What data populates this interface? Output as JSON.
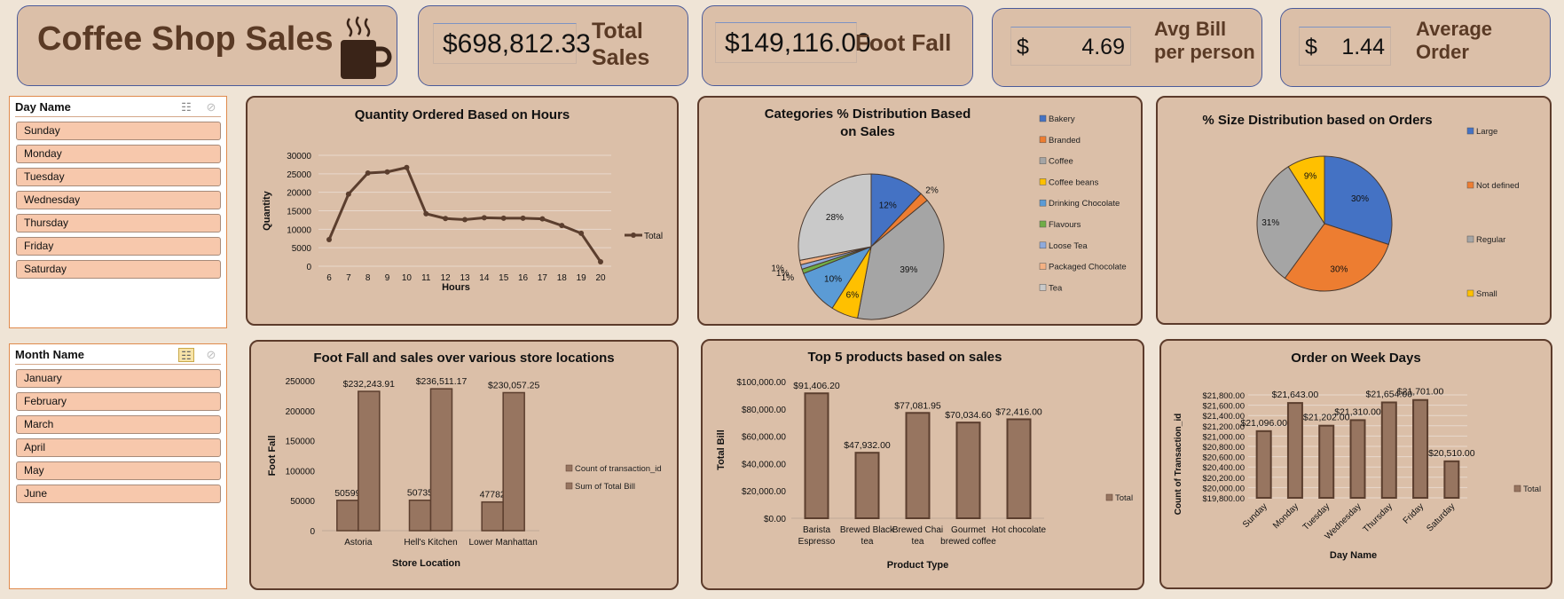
{
  "header": {
    "title": "Coffee Shop Sales",
    "icon": "coffee-cup-icon"
  },
  "kpis": [
    {
      "value": "$698,812.33",
      "label": "Total Sales"
    },
    {
      "value": "$149,116.00",
      "label": "Foot Fall"
    },
    {
      "currency": "$",
      "value": "4.69",
      "label": "Avg Bill per person"
    },
    {
      "currency": "$",
      "value": "1.44",
      "label": "Average Order"
    }
  ],
  "slicers": {
    "day": {
      "title": "Day Name",
      "items": [
        "Sunday",
        "Monday",
        "Tuesday",
        "Wednesday",
        "Thursday",
        "Friday",
        "Saturday"
      ]
    },
    "month": {
      "title": "Month Name",
      "items": [
        "January",
        "February",
        "March",
        "April",
        "May",
        "June"
      ]
    }
  },
  "colors": {
    "bar": "#977560",
    "line": "#5b3e2e",
    "panel": "#dbbfa8",
    "border": "#5c3b2b"
  },
  "chart_data": [
    {
      "type": "line",
      "title": "Quantity Ordered Based on Hours",
      "xlabel": "Hours",
      "ylabel": "Quantity",
      "x": [
        6,
        7,
        8,
        9,
        10,
        11,
        12,
        13,
        14,
        15,
        16,
        17,
        18,
        19,
        20
      ],
      "series": [
        {
          "name": "Total",
          "values": [
            7200,
            19500,
            25200,
            25500,
            26700,
            14200,
            12900,
            12600,
            13100,
            13000,
            13000,
            12800,
            11000,
            8900,
            1200
          ]
        }
      ],
      "yticks": [
        "0",
        "5000",
        "10000",
        "15000",
        "20000",
        "25000",
        "30000"
      ],
      "ylim": [
        0,
        30000
      ]
    },
    {
      "type": "pie",
      "title": "Categories % Distribution Based on Sales",
      "title_lines": [
        "Categories % Distribution Based",
        "on Sales"
      ],
      "categories": [
        "Bakery",
        "Branded",
        "Coffee",
        "Coffee beans",
        "Drinking Chocolate",
        "Flavours",
        "Loose Tea",
        "Packaged Chocolate",
        "Tea"
      ],
      "values": [
        12,
        2,
        39,
        6,
        10,
        1,
        1,
        1,
        28
      ],
      "labels": [
        "12%",
        "2%",
        "39%",
        "6%",
        "10%",
        "1%",
        "1%",
        "1%",
        "28%"
      ],
      "colors": [
        "#4472c4",
        "#ed7d31",
        "#a5a5a5",
        "#ffc000",
        "#5b9bd5",
        "#70ad47",
        "#8faadc",
        "#f4b183",
        "#c9c9c9"
      ]
    },
    {
      "type": "pie",
      "title": "% Size Distribution based on Orders",
      "categories": [
        "Large",
        "Not defined",
        "Regular",
        "Small"
      ],
      "values": [
        30,
        30,
        31,
        9
      ],
      "labels": [
        "30%",
        "30%",
        "31%",
        "9%"
      ],
      "colors": [
        "#4472c4",
        "#ed7d31",
        "#a5a5a5",
        "#ffc000"
      ]
    },
    {
      "type": "bar",
      "title": "Foot Fall and sales over various store locations",
      "xlabel": "Store Location",
      "ylabel": "Foot Fall",
      "categories": [
        "Astoria",
        "Hell's Kitchen",
        "Lower Manhattan"
      ],
      "series": [
        {
          "name": "Count of transaction_id",
          "values": [
            50599,
            50735,
            47782
          ],
          "labels": [
            "50599",
            "50735",
            "47782"
          ]
        },
        {
          "name": "Sum of Total Bill",
          "values": [
            232243.91,
            236511.17,
            230057.25
          ],
          "labels": [
            "$232,243.91",
            "$236,511.17",
            "$230,057.25"
          ]
        }
      ],
      "yticks": [
        "0",
        "50000",
        "100000",
        "150000",
        "200000",
        "250000"
      ],
      "ylim": [
        0,
        250000
      ]
    },
    {
      "type": "bar",
      "title": "Top 5 products based on sales",
      "xlabel": "Product Type",
      "ylabel": "Total Bill",
      "categories": [
        [
          "Barista",
          "Espresso"
        ],
        [
          "Brewed Black",
          "tea"
        ],
        [
          "Brewed Chai",
          "tea"
        ],
        [
          "Gourmet",
          "brewed coffee"
        ],
        [
          "Hot chocolate"
        ]
      ],
      "series": [
        {
          "name": "Total",
          "values": [
            91406.2,
            47932.0,
            77081.95,
            70034.6,
            72416.0
          ],
          "labels": [
            "$91,406.20",
            "$47,932.00",
            "$77,081.95",
            "$70,034.60",
            "$72,416.00"
          ]
        }
      ],
      "yticks": [
        "$0.00",
        "$20,000.00",
        "$40,000.00",
        "$60,000.00",
        "$80,000.00",
        "$100,000.00"
      ],
      "ylim": [
        0,
        100000
      ]
    },
    {
      "type": "bar",
      "title": "Order on Week Days",
      "xlabel": "Day Name",
      "ylabel": "Count of Transaction_id",
      "categories": [
        "Sunday",
        "Monday",
        "Tuesday",
        "Wednesday",
        "Thursday",
        "Friday",
        "Saturday"
      ],
      "series": [
        {
          "name": "Total",
          "values": [
            21096,
            21643,
            21202,
            21310,
            21654,
            21701,
            20510
          ],
          "labels": [
            "$21,096.00",
            "$21,643.00",
            "$21,202.00",
            "$21,310.00",
            "$21,654.00",
            "$21,701.00",
            "$20,510.00"
          ]
        }
      ],
      "yticks": [
        "$19,800.00",
        "$20,000.00",
        "$20,200.00",
        "$20,400.00",
        "$20,600.00",
        "$20,800.00",
        "$21,000.00",
        "$21,200.00",
        "$21,400.00",
        "$21,600.00",
        "$21,800.00"
      ],
      "ylim": [
        19800,
        21800
      ]
    }
  ]
}
